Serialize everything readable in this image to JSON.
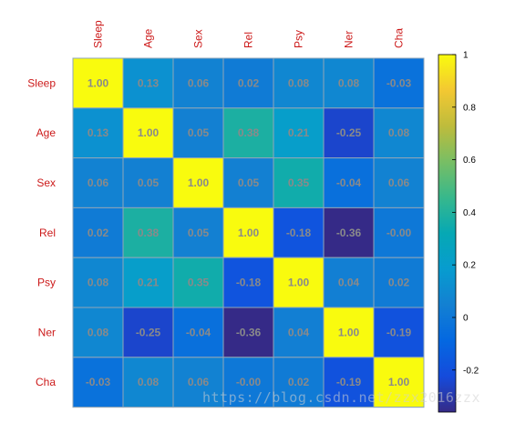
{
  "chart_data": {
    "type": "heatmap",
    "title": "",
    "labels": [
      "Sleep",
      "Age",
      "Sex",
      "Rel",
      "Psy",
      "Ner",
      "Cha"
    ],
    "values": [
      [
        "1.00",
        "0.13",
        "0.06",
        "0.02",
        "0.08",
        "0.08",
        "-0.03"
      ],
      [
        "0.13",
        "1.00",
        "0.05",
        "0.38",
        "0.21",
        "-0.25",
        "0.08"
      ],
      [
        "0.06",
        "0.05",
        "1.00",
        "0.05",
        "0.35",
        "-0.04",
        "0.06"
      ],
      [
        "0.02",
        "0.38",
        "0.05",
        "1.00",
        "-0.18",
        "-0.36",
        "-0.00"
      ],
      [
        "0.08",
        "0.21",
        "0.35",
        "-0.18",
        "1.00",
        "0.04",
        "0.02"
      ],
      [
        "0.08",
        "-0.25",
        "-0.04",
        "-0.36",
        "0.04",
        "1.00",
        "-0.19"
      ],
      [
        "-0.03",
        "0.08",
        "0.06",
        "-0.00",
        "0.02",
        "-0.19",
        "1.00"
      ]
    ],
    "colorbar": {
      "range": [
        -0.36,
        1.0
      ],
      "ticks": [
        "1",
        "0.8",
        "0.6",
        "0.4",
        "0.2",
        "0",
        "-0.2"
      ],
      "colormap": "parula"
    },
    "label_color": "#cc1a1a",
    "value_text_color": "#8a8a8a"
  },
  "watermark": "https://blog.csdn.net/zzx2016zzx"
}
